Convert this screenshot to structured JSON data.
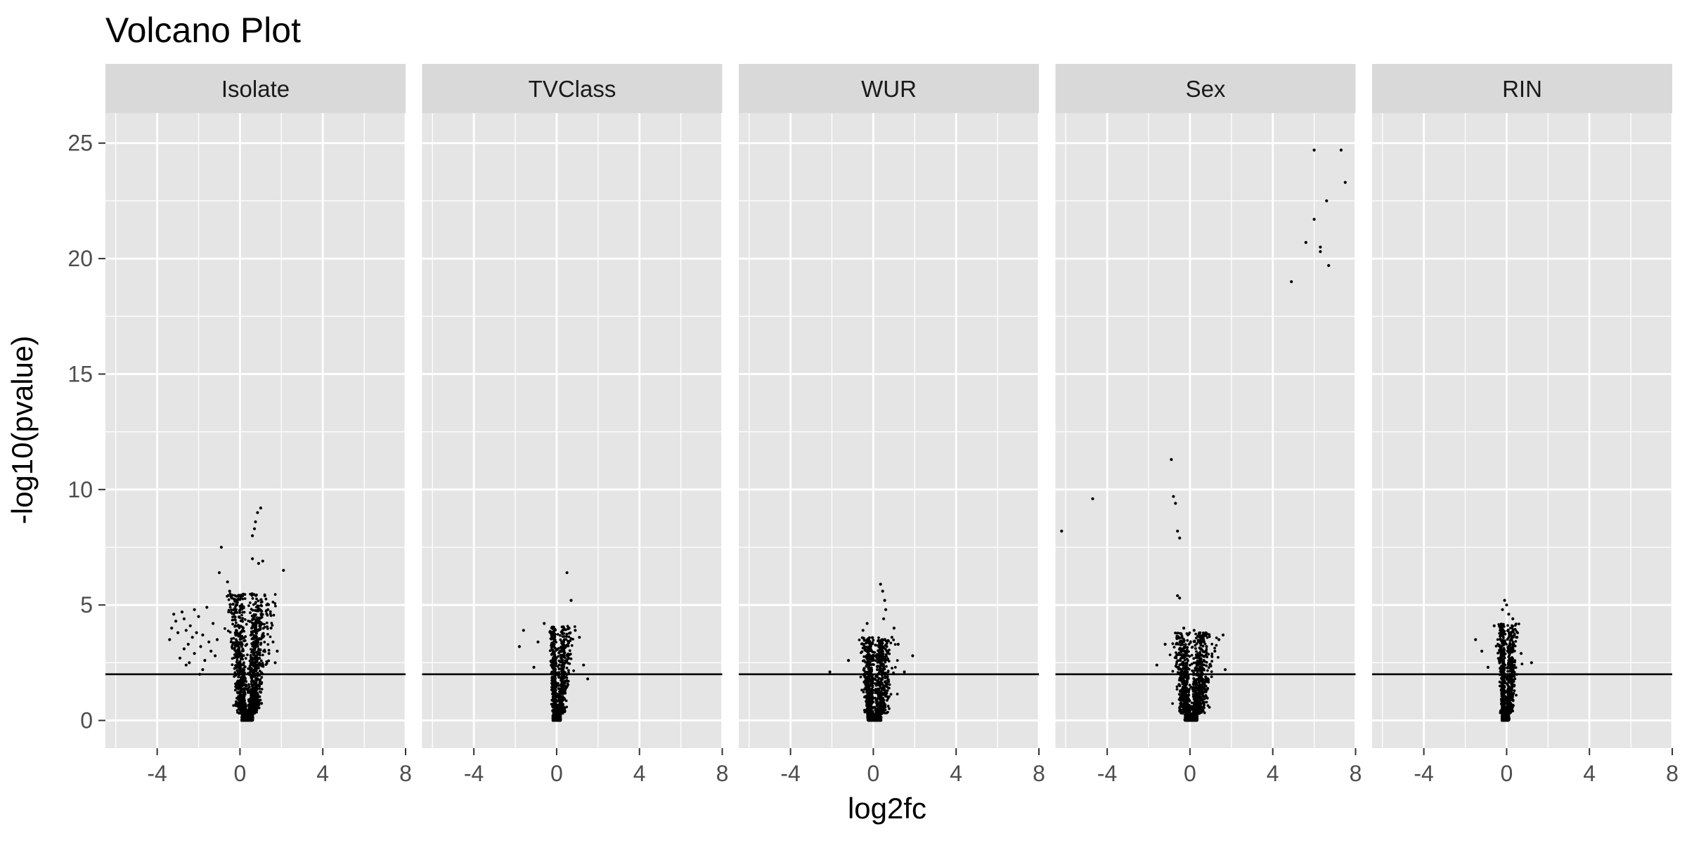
{
  "chart_data": {
    "type": "scatter",
    "title": "Volcano Plot",
    "xlabel": "log2fc",
    "ylabel": "-log10(pvalue)",
    "xlim": [
      -6.5,
      8
    ],
    "ylim": [
      -1.2,
      26.3
    ],
    "x_ticks": [
      -4,
      0,
      4,
      8
    ],
    "x_tick_labels": [
      "-4",
      "0",
      "4",
      "8"
    ],
    "y_ticks": [
      0,
      5,
      10,
      15,
      20,
      25
    ],
    "y_tick_labels": [
      "0",
      "5",
      "10",
      "15",
      "20",
      "25"
    ],
    "grid": true,
    "legend": "none",
    "threshold_line": {
      "y": 2
    },
    "panel_background": "#e5e5e5",
    "strip_background": "#d9d9d9",
    "gridline_color": "#ffffff",
    "point_color": "#000000",
    "facets": [
      {
        "name": "Isolate",
        "bulk": {
          "center": 0.35,
          "base_width": 0.45,
          "slope": 0.12,
          "top": 5.5,
          "count": 1400,
          "left_wing": 0.9
        },
        "points": [
          {
            "x": 1.0,
            "y": 9.2
          },
          {
            "x": 0.85,
            "y": 9.0
          },
          {
            "x": 0.75,
            "y": 8.6
          },
          {
            "x": 0.7,
            "y": 8.3
          },
          {
            "x": 0.6,
            "y": 8.0
          },
          {
            "x": -0.9,
            "y": 7.5
          },
          {
            "x": 1.1,
            "y": 6.9
          },
          {
            "x": 0.9,
            "y": 6.8
          },
          {
            "x": 0.6,
            "y": 7.0
          },
          {
            "x": 2.1,
            "y": 6.5
          },
          {
            "x": -1.0,
            "y": 6.4
          },
          {
            "x": -0.6,
            "y": 6.0
          },
          {
            "x": -0.5,
            "y": 5.6
          },
          {
            "x": -0.4,
            "y": 5.3
          },
          {
            "x": -3.3,
            "y": 4.0
          },
          {
            "x": -3.1,
            "y": 4.3
          },
          {
            "x": -3.0,
            "y": 3.8
          },
          {
            "x": -2.8,
            "y": 4.7
          },
          {
            "x": -2.7,
            "y": 4.4
          },
          {
            "x": -2.6,
            "y": 3.9
          },
          {
            "x": -2.5,
            "y": 3.3
          },
          {
            "x": -2.4,
            "y": 4.1
          },
          {
            "x": -2.3,
            "y": 3.6
          },
          {
            "x": -2.2,
            "y": 2.9
          },
          {
            "x": -2.1,
            "y": 3.8
          },
          {
            "x": -2.0,
            "y": 4.5
          },
          {
            "x": -1.9,
            "y": 3.2
          },
          {
            "x": -1.8,
            "y": 3.7
          },
          {
            "x": -1.7,
            "y": 2.6
          },
          {
            "x": -1.6,
            "y": 4.9
          },
          {
            "x": -1.5,
            "y": 3.4
          },
          {
            "x": -1.4,
            "y": 3.0
          },
          {
            "x": -1.3,
            "y": 4.2
          },
          {
            "x": -1.2,
            "y": 2.8
          },
          {
            "x": -1.1,
            "y": 3.5
          },
          {
            "x": -2.9,
            "y": 2.7
          },
          {
            "x": -2.6,
            "y": 2.4
          },
          {
            "x": -3.4,
            "y": 3.5
          },
          {
            "x": -1.8,
            "y": 2.2
          },
          {
            "x": -2.2,
            "y": 4.8
          },
          {
            "x": -1.95,
            "y": 2.0
          },
          {
            "x": -2.7,
            "y": 3.1
          },
          {
            "x": -3.2,
            "y": 4.6
          },
          {
            "x": -2.45,
            "y": 2.5
          },
          {
            "x": 1.5,
            "y": 4.0
          },
          {
            "x": 1.6,
            "y": 3.4
          },
          {
            "x": 1.4,
            "y": 2.9
          },
          {
            "x": 1.35,
            "y": 4.8
          },
          {
            "x": 1.2,
            "y": 5.4
          },
          {
            "x": 1.7,
            "y": 2.5
          },
          {
            "x": 1.8,
            "y": 3.0
          }
        ]
      },
      {
        "name": "TVClass",
        "bulk": {
          "center": 0.0,
          "base_width": 0.32,
          "slope": 0.11,
          "top": 4.1,
          "count": 900,
          "left_wing": 0.45
        },
        "points": [
          {
            "x": 0.5,
            "y": 6.4
          },
          {
            "x": 0.7,
            "y": 5.2
          },
          {
            "x": -1.6,
            "y": 3.9
          },
          {
            "x": -1.8,
            "y": 3.2
          },
          {
            "x": -0.6,
            "y": 4.2
          },
          {
            "x": 1.1,
            "y": 3.6
          },
          {
            "x": 0.9,
            "y": 3.9
          },
          {
            "x": 1.3,
            "y": 2.4
          },
          {
            "x": 1.5,
            "y": 1.8
          },
          {
            "x": -0.9,
            "y": 3.4
          },
          {
            "x": 0.6,
            "y": 4.0
          },
          {
            "x": -1.1,
            "y": 2.3
          }
        ]
      },
      {
        "name": "WUR",
        "bulk": {
          "center": 0.05,
          "base_width": 0.55,
          "slope": 0.08,
          "top": 3.6,
          "count": 1000,
          "left_wing": 0.7
        },
        "points": [
          {
            "x": 0.35,
            "y": 5.9
          },
          {
            "x": 0.45,
            "y": 5.6
          },
          {
            "x": 0.55,
            "y": 5.2
          },
          {
            "x": 0.6,
            "y": 4.8
          },
          {
            "x": 0.5,
            "y": 4.4
          },
          {
            "x": -0.3,
            "y": 4.2
          },
          {
            "x": -0.5,
            "y": 3.9
          },
          {
            "x": 1.0,
            "y": 4.0
          },
          {
            "x": 1.2,
            "y": 3.3
          },
          {
            "x": -2.1,
            "y": 2.1
          },
          {
            "x": 1.9,
            "y": 2.8
          },
          {
            "x": 1.5,
            "y": 2.1
          },
          {
            "x": -1.2,
            "y": 2.6
          },
          {
            "x": 0.9,
            "y": 3.6
          }
        ]
      },
      {
        "name": "Sex",
        "bulk": {
          "center": 0.05,
          "base_width": 0.5,
          "slope": 0.15,
          "top": 3.8,
          "count": 1200,
          "left_wing": 0.8
        },
        "points": [
          {
            "x": 6.0,
            "y": 24.7
          },
          {
            "x": 7.3,
            "y": 24.7
          },
          {
            "x": 7.5,
            "y": 23.3
          },
          {
            "x": 6.6,
            "y": 22.5
          },
          {
            "x": 6.0,
            "y": 21.7
          },
          {
            "x": 5.6,
            "y": 20.7
          },
          {
            "x": 6.3,
            "y": 20.5
          },
          {
            "x": 6.3,
            "y": 20.3
          },
          {
            "x": 6.7,
            "y": 19.7
          },
          {
            "x": 4.9,
            "y": 19.0
          },
          {
            "x": -0.9,
            "y": 11.3
          },
          {
            "x": -0.8,
            "y": 9.7
          },
          {
            "x": -0.7,
            "y": 9.4
          },
          {
            "x": -4.7,
            "y": 9.6
          },
          {
            "x": -6.2,
            "y": 8.2
          },
          {
            "x": -0.6,
            "y": 8.2
          },
          {
            "x": -0.5,
            "y": 7.9
          },
          {
            "x": -0.6,
            "y": 5.4
          },
          {
            "x": -0.5,
            "y": 5.3
          },
          {
            "x": 1.6,
            "y": 3.7
          },
          {
            "x": 1.4,
            "y": 3.5
          },
          {
            "x": 1.2,
            "y": 3.0
          },
          {
            "x": 0.8,
            "y": 3.2
          },
          {
            "x": -1.2,
            "y": 3.3
          },
          {
            "x": -1.6,
            "y": 2.4
          },
          {
            "x": 1.7,
            "y": 2.2
          },
          {
            "x": -0.3,
            "y": 4.0
          },
          {
            "x": 0.2,
            "y": 3.9
          },
          {
            "x": 0.5,
            "y": 3.4
          }
        ]
      },
      {
        "name": "RIN",
        "bulk": {
          "center": -0.05,
          "base_width": 0.3,
          "slope": 0.07,
          "top": 4.2,
          "count": 900,
          "left_wing": 0.6
        },
        "points": [
          {
            "x": -0.1,
            "y": 5.2
          },
          {
            "x": 0.0,
            "y": 5.0
          },
          {
            "x": -0.2,
            "y": 4.8
          },
          {
            "x": 0.1,
            "y": 4.6
          },
          {
            "x": 0.3,
            "y": 4.4
          },
          {
            "x": -0.6,
            "y": 4.1
          },
          {
            "x": -1.5,
            "y": 3.5
          },
          {
            "x": -1.2,
            "y": 3.0
          },
          {
            "x": 1.2,
            "y": 2.5
          },
          {
            "x": 0.7,
            "y": 2.9
          },
          {
            "x": -0.9,
            "y": 2.3
          },
          {
            "x": 0.5,
            "y": 3.6
          }
        ]
      }
    ]
  }
}
